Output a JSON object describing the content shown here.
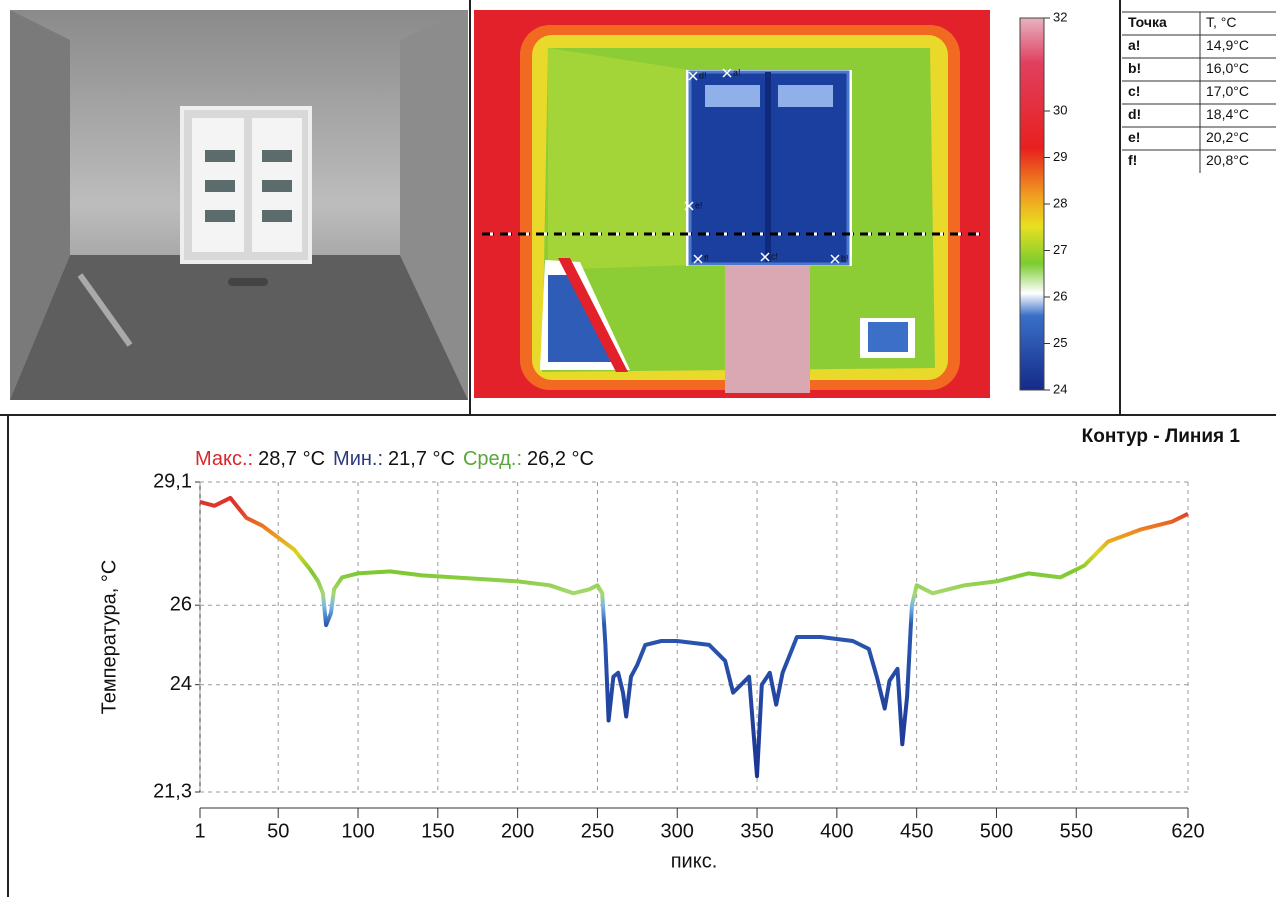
{
  "colorbar": {
    "lim": [
      24,
      32
    ],
    "ticks": [
      32,
      30,
      29,
      28,
      27,
      26,
      25,
      24
    ]
  },
  "table": {
    "header": [
      "Точка",
      "T, °C"
    ],
    "rows": [
      [
        "a!",
        "14,9°C"
      ],
      [
        "b!",
        "16,0°C"
      ],
      [
        "c!",
        "17,0°C"
      ],
      [
        "d!",
        "18,4°C"
      ],
      [
        "e!",
        "20,2°C"
      ],
      [
        "f!",
        "20,8°C"
      ]
    ]
  },
  "chart_data": {
    "type": "line",
    "title": "Контур - Линия 1",
    "stats": [
      {
        "label": "Макс.:",
        "value": "28,7 °C",
        "color": "#d8262a"
      },
      {
        "label": "Мин.:",
        "value": "21,7 °C",
        "color": "#2a3a7a"
      },
      {
        "label": "Сред.:",
        "value": "26,2 °C",
        "color": "#5aa63c"
      }
    ],
    "x": [
      1,
      10,
      20,
      30,
      40,
      50,
      60,
      70,
      75,
      78,
      80,
      83,
      85,
      90,
      100,
      120,
      140,
      160,
      180,
      200,
      220,
      235,
      245,
      250,
      253,
      255,
      257,
      260,
      263,
      266,
      268,
      271,
      275,
      280,
      290,
      300,
      320,
      330,
      335,
      340,
      345,
      350,
      353,
      358,
      362,
      366,
      370,
      375,
      390,
      410,
      420,
      425,
      430,
      433,
      438,
      441,
      444,
      447,
      450,
      460,
      480,
      500,
      520,
      540,
      555,
      570,
      590,
      610,
      620
    ],
    "series": [
      {
        "values": [
          28.6,
          28.5,
          28.7,
          28.2,
          28.0,
          27.7,
          27.4,
          26.9,
          26.6,
          26.3,
          25.5,
          25.8,
          26.4,
          26.7,
          26.8,
          26.85,
          26.75,
          26.7,
          26.65,
          26.6,
          26.5,
          26.3,
          26.4,
          26.5,
          26.3,
          25.0,
          23.1,
          24.2,
          24.3,
          23.8,
          23.2,
          24.2,
          24.5,
          25.0,
          25.1,
          25.1,
          25.0,
          24.6,
          23.8,
          24.0,
          24.2,
          21.7,
          24.0,
          24.3,
          23.5,
          24.3,
          24.7,
          25.2,
          25.2,
          25.1,
          24.9,
          24.2,
          23.4,
          24.1,
          24.4,
          22.5,
          23.7,
          26.0,
          26.5,
          26.3,
          26.5,
          26.6,
          26.8,
          26.7,
          27.0,
          27.6,
          27.9,
          28.1,
          28.3
        ]
      }
    ],
    "xlim": [
      1,
      620
    ],
    "xticks": [
      1,
      50,
      100,
      150,
      200,
      250,
      300,
      350,
      400,
      450,
      500,
      550,
      620
    ],
    "ylim": [
      21.3,
      29.1
    ],
    "yticks": [
      {
        "value": 29.1,
        "label": "29,1"
      },
      26,
      24,
      {
        "value": 21.3,
        "label": "21,3"
      }
    ],
    "xlabel": "пикс.",
    "ylabel": "Температура, °C",
    "grid": true
  }
}
